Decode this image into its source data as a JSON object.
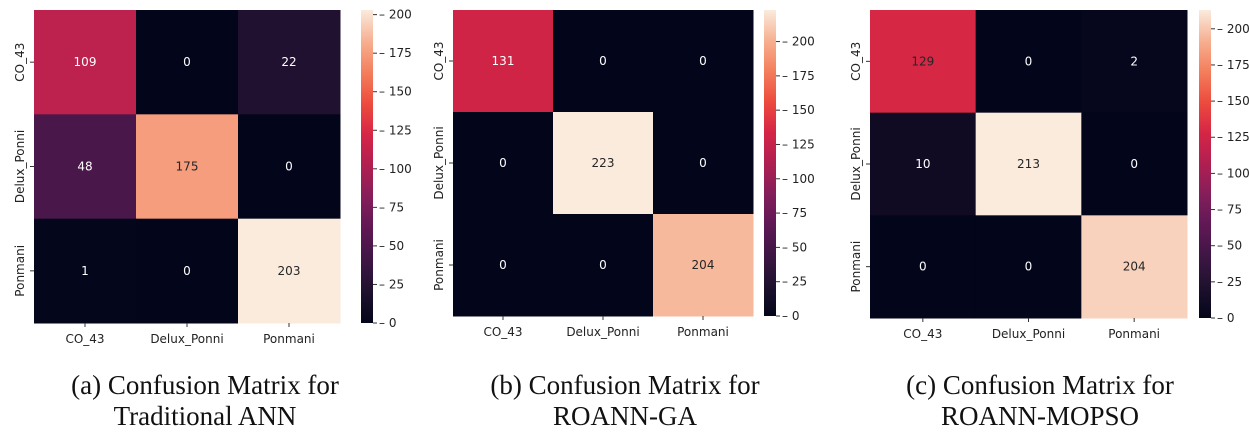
{
  "panels": [
    {
      "caption_line1": "(a) Confusion Matrix for",
      "caption_line2": "Traditional ANN"
    },
    {
      "caption_line1": "(b) Confusion Matrix for",
      "caption_line2": "ROANN-GA"
    },
    {
      "caption_line1": "(c) Confusion Matrix for",
      "caption_line2": "ROANN-MOPSO"
    }
  ],
  "chart_data": [
    {
      "type": "heatmap",
      "categories": [
        "CO_43",
        "Delux_Ponni",
        "Ponmani"
      ],
      "x_tick_labels": [
        "CO_43",
        "Delux_Ponni",
        "Ponmani"
      ],
      "y_tick_labels": [
        "CO_43",
        "Delux_Ponni",
        "Ponmani"
      ],
      "values": [
        [
          109,
          0,
          22
        ],
        [
          48,
          175,
          0
        ],
        [
          1,
          0,
          203
        ]
      ],
      "colorbar_range": [
        0,
        203
      ],
      "colorbar_ticks": [
        0,
        25,
        50,
        75,
        100,
        125,
        150,
        175,
        200
      ],
      "colormap": "rocket"
    },
    {
      "type": "heatmap",
      "categories": [
        "CO_43",
        "Delux_Ponni",
        "Ponmani"
      ],
      "x_tick_labels": [
        "CO_43",
        "Delux_Ponni",
        "Ponmani"
      ],
      "y_tick_labels": [
        "CO_43",
        "Delux_Ponni",
        "Ponmani"
      ],
      "values": [
        [
          131,
          0,
          0
        ],
        [
          0,
          223,
          0
        ],
        [
          0,
          0,
          204
        ]
      ],
      "colorbar_range": [
        0,
        223
      ],
      "colorbar_ticks": [
        0,
        25,
        50,
        75,
        100,
        125,
        150,
        175,
        200
      ],
      "colormap": "rocket"
    },
    {
      "type": "heatmap",
      "categories": [
        "CO_43",
        "Delux_Ponni",
        "Ponmani"
      ],
      "x_tick_labels": [
        "CO_43",
        "Delux_Ponni",
        "Ponmani"
      ],
      "y_tick_labels": [
        "CO_43",
        "Delux_Ponni",
        "Ponmani"
      ],
      "values": [
        [
          129,
          0,
          2
        ],
        [
          10,
          213,
          0
        ],
        [
          0,
          0,
          204
        ]
      ],
      "colorbar_range": [
        0,
        213
      ],
      "colorbar_ticks": [
        0,
        25,
        50,
        75,
        100,
        125,
        150,
        175,
        200
      ],
      "colormap": "rocket"
    }
  ]
}
